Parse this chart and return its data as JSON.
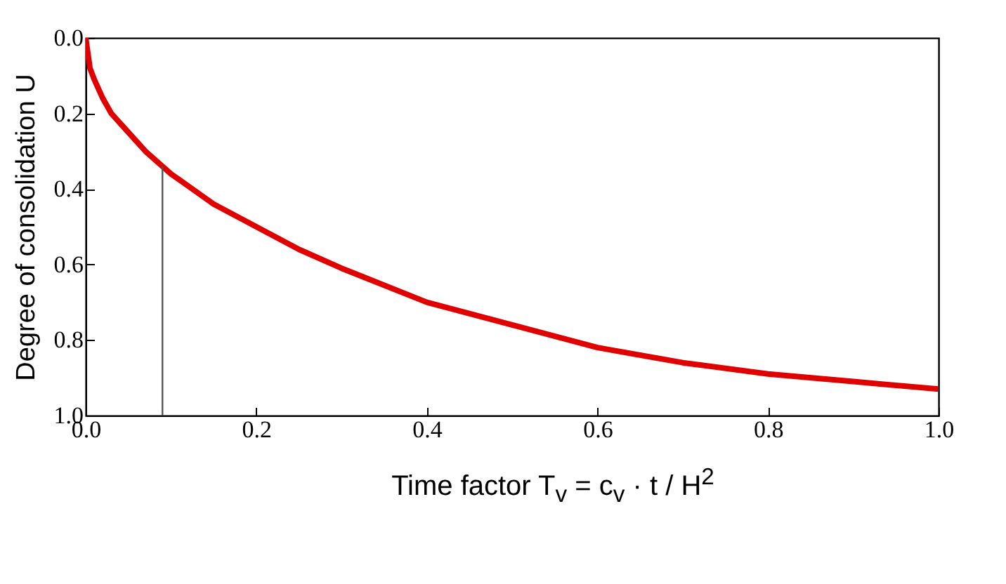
{
  "chart_data": {
    "type": "line",
    "xlabel": "Time factor   T$_{v}$ = c$_{v}$ · t / H$^{2}$",
    "ylabel": "Degree of consolidation U",
    "xlim": [
      0,
      1
    ],
    "xticks": [
      {
        "value": 0,
        "label": "0.0"
      },
      0.2,
      0.4,
      0.6,
      0.8,
      {
        "value": 1,
        "label": "1.0"
      }
    ],
    "ylim": [
      1,
      0
    ],
    "yticks": [
      {
        "value": 0,
        "label": "0.0"
      },
      0.2,
      0.4,
      0.6,
      0.8,
      {
        "value": 1,
        "label": "1.0"
      }
    ],
    "grid": false,
    "marker": "none",
    "line_style": "solid",
    "series": [
      {
        "color": "#e00000",
        "x": [
          0,
          0.005,
          0.01,
          0.02,
          0.03,
          0.05,
          0.07,
          0.1,
          0.15,
          0.2,
          0.25,
          0.3,
          0.4,
          0.5,
          0.6,
          0.7,
          0.8,
          0.9,
          1.0
        ],
        "values": [
          0,
          0.08,
          0.11,
          0.16,
          0.2,
          0.25,
          0.3,
          0.36,
          0.44,
          0.5,
          0.56,
          0.61,
          0.7,
          0.76,
          0.82,
          0.86,
          0.89,
          0.91,
          0.93
        ]
      },
      {
        "color": "#555555",
        "x": [
          0.09,
          0.09
        ],
        "values": [
          1,
          0.34
        ]
      }
    ]
  }
}
